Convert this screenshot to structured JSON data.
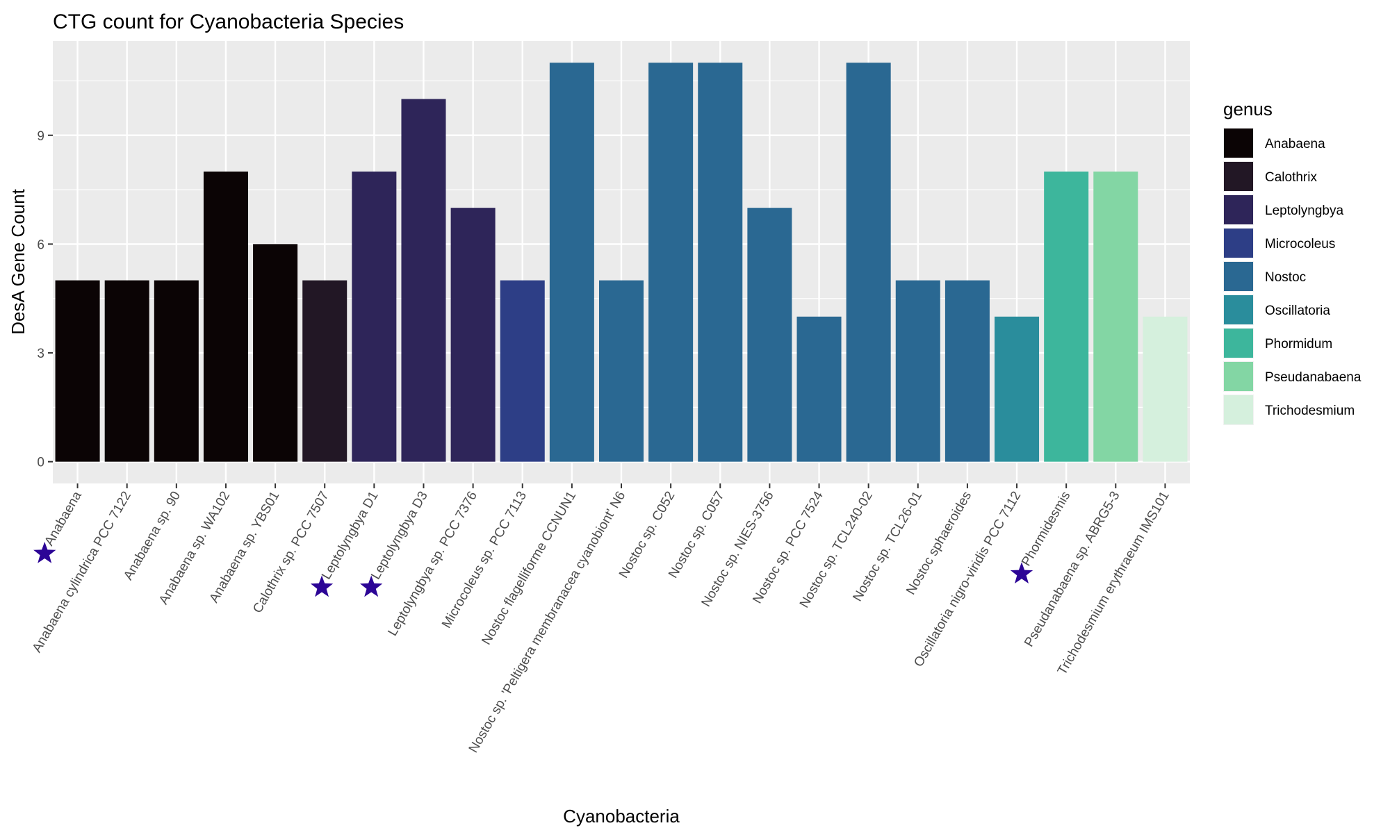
{
  "chart_data": {
    "type": "bar",
    "title": "CTG count for Cyanobacteria Species",
    "xlabel": "Cyanobacteria",
    "ylabel": "DesA Gene Count",
    "ylim": [
      -0.6,
      11.6
    ],
    "yticks": [
      0,
      3,
      6,
      9
    ],
    "grid": true,
    "legend": {
      "title": "genus",
      "position": "right",
      "entries": [
        {
          "label": "Anabaena",
          "color": "#0b0405"
        },
        {
          "label": "Calothrix",
          "color": "#221725"
        },
        {
          "label": "Leptolyngbya",
          "color": "#2e2559"
        },
        {
          "label": "Microcoleus",
          "color": "#2d3e86"
        },
        {
          "label": "Nostoc",
          "color": "#2a6892"
        },
        {
          "label": "Oscillatoria",
          "color": "#2a8d9c"
        },
        {
          "label": "Phormidum",
          "color": "#3db69c"
        },
        {
          "label": "Pseudanabaena",
          "color": "#83d6a4"
        },
        {
          "label": "Trichodesmium",
          "color": "#d5f0dd"
        }
      ]
    },
    "star_color": "#2c0596",
    "bars": [
      {
        "category": "Anabaena",
        "value": 5,
        "genus": "Anabaena",
        "starred": true
      },
      {
        "category": "Anabaena cylindrica PCC 7122",
        "value": 5,
        "genus": "Anabaena",
        "starred": false
      },
      {
        "category": "Anabaena sp. 90",
        "value": 5,
        "genus": "Anabaena",
        "starred": false
      },
      {
        "category": "Anabaena sp. WA102",
        "value": 8,
        "genus": "Anabaena",
        "starred": false
      },
      {
        "category": "Anabaena sp. YBS01",
        "value": 6,
        "genus": "Anabaena",
        "starred": false
      },
      {
        "category": "Calothrix sp. PCC 7507",
        "value": 5,
        "genus": "Calothrix",
        "starred": false
      },
      {
        "category": "Leptolyngbya D1",
        "value": 8,
        "genus": "Leptolyngbya",
        "starred": true
      },
      {
        "category": "Leptolyngbya D3",
        "value": 10,
        "genus": "Leptolyngbya",
        "starred": true
      },
      {
        "category": "Leptolyngbya sp. PCC 7376",
        "value": 7,
        "genus": "Leptolyngbya",
        "starred": false
      },
      {
        "category": "Microcoleus sp. PCC 7113",
        "value": 5,
        "genus": "Microcoleus",
        "starred": false
      },
      {
        "category": "Nostoc flagelliforme CCNUN1",
        "value": 11,
        "genus": "Nostoc",
        "starred": false
      },
      {
        "category": "Nostoc sp. 'Peltigera membranacea cyanobiont' N6",
        "value": 5,
        "genus": "Nostoc",
        "starred": false
      },
      {
        "category": "Nostoc sp. C052",
        "value": 11,
        "genus": "Nostoc",
        "starred": false
      },
      {
        "category": "Nostoc sp. C057",
        "value": 11,
        "genus": "Nostoc",
        "starred": false
      },
      {
        "category": "Nostoc sp. NIES-3756",
        "value": 7,
        "genus": "Nostoc",
        "starred": false
      },
      {
        "category": "Nostoc sp. PCC 7524",
        "value": 4,
        "genus": "Nostoc",
        "starred": false
      },
      {
        "category": "Nostoc sp. TCL240-02",
        "value": 11,
        "genus": "Nostoc",
        "starred": false
      },
      {
        "category": "Nostoc sp. TCL26-01",
        "value": 5,
        "genus": "Nostoc",
        "starred": false
      },
      {
        "category": "Nostoc sphaeroides",
        "value": 5,
        "genus": "Nostoc",
        "starred": false
      },
      {
        "category": "Oscillatoria nigro-viridis PCC 7112",
        "value": 4,
        "genus": "Oscillatoria",
        "starred": false
      },
      {
        "category": "Phormidesmis",
        "value": 8,
        "genus": "Phormidum",
        "starred": true
      },
      {
        "category": "Pseudanabaena sp. ABRG5-3",
        "value": 8,
        "genus": "Pseudanabaena",
        "starred": false
      },
      {
        "category": "Trichodesmium erythraeum IMS101",
        "value": 4,
        "genus": "Trichodesmium",
        "starred": false
      }
    ]
  }
}
